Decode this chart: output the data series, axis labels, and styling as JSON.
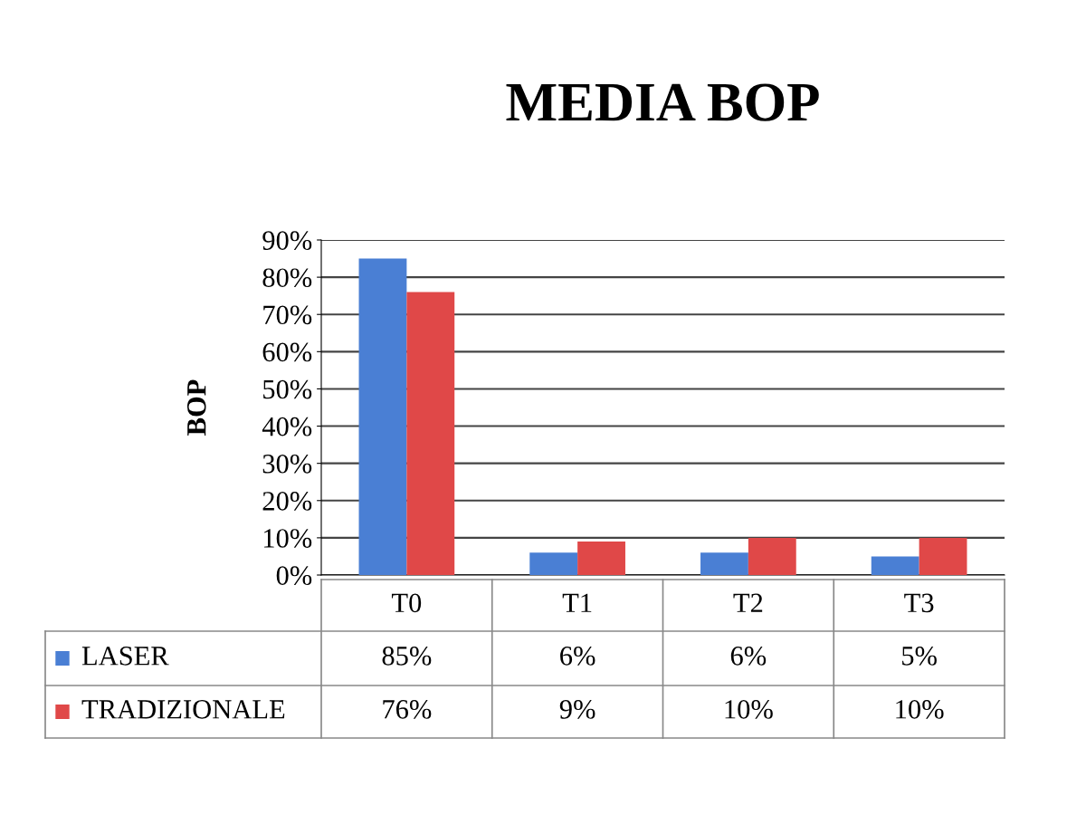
{
  "chart_data": {
    "type": "bar",
    "title": "MEDIA BOP",
    "ylabel": "BOP",
    "categories": [
      "T0",
      "T1",
      "T2",
      "T3"
    ],
    "series": [
      {
        "name": "LASER",
        "color": "#4a7fd4",
        "values": [
          85,
          6,
          6,
          5
        ],
        "value_labels": [
          "85%",
          "6%",
          "6%",
          "5%"
        ]
      },
      {
        "name": "TRADIZIONALE",
        "color": "#e04848",
        "values": [
          76,
          9,
          10,
          10
        ],
        "value_labels": [
          "76%",
          "9%",
          "10%",
          "10%"
        ]
      }
    ],
    "ylim": [
      0,
      90
    ],
    "yticks": [
      {
        "value": 0,
        "label": "0%"
      },
      {
        "value": 10,
        "label": "10%"
      },
      {
        "value": 20,
        "label": "20%"
      },
      {
        "value": 30,
        "label": "30%"
      },
      {
        "value": 40,
        "label": "40%"
      },
      {
        "value": 50,
        "label": "50%"
      },
      {
        "value": 60,
        "label": "60%"
      },
      {
        "value": 70,
        "label": "70%"
      },
      {
        "value": 80,
        "label": "80%"
      },
      {
        "value": 90,
        "label": "90%"
      }
    ],
    "grid": "y",
    "legend": "bottom"
  }
}
